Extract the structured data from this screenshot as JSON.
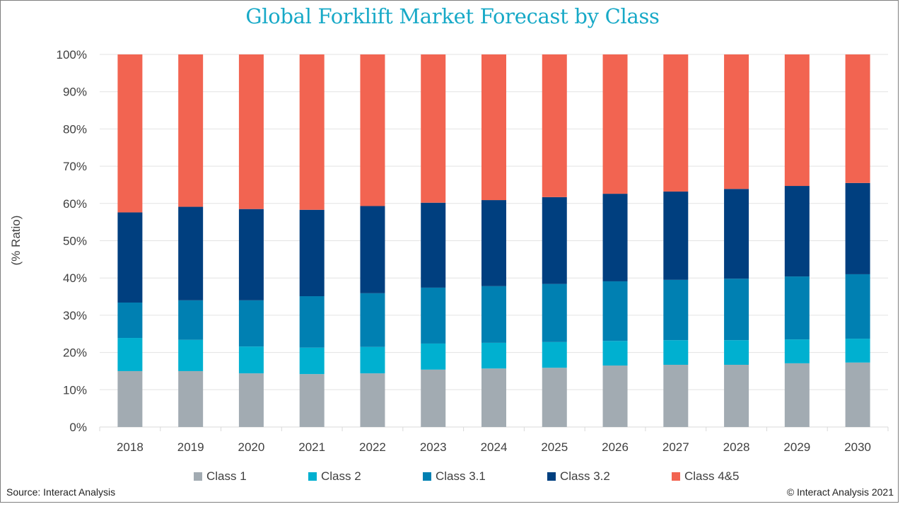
{
  "chart_data": {
    "type": "bar",
    "stacked": true,
    "title": "Global Forklift Market Forecast by Class",
    "xlabel": "",
    "ylabel": "(% Ratio)",
    "ylim": [
      0,
      100
    ],
    "yticks": [
      "0%",
      "10%",
      "20%",
      "30%",
      "40%",
      "50%",
      "60%",
      "70%",
      "80%",
      "90%",
      "100%"
    ],
    "grid": true,
    "legend_position": "bottom",
    "categories": [
      "2018",
      "2019",
      "2020",
      "2021",
      "2022",
      "2023",
      "2024",
      "2025",
      "2026",
      "2027",
      "2028",
      "2029",
      "2030"
    ],
    "series": [
      {
        "name": "Class 1",
        "color": "#a2abb2",
        "values": [
          15.0,
          15.0,
          14.4,
          14.2,
          14.4,
          15.4,
          15.7,
          15.9,
          16.5,
          16.7,
          16.7,
          17.1,
          17.3
        ]
      },
      {
        "name": "Class 2",
        "color": "#00b0d0",
        "values": [
          8.9,
          8.4,
          7.2,
          7.1,
          7.1,
          7.0,
          6.9,
          6.9,
          6.6,
          6.6,
          6.6,
          6.4,
          6.4
        ]
      },
      {
        "name": "Class 3.1",
        "color": "#0080b2",
        "values": [
          9.5,
          10.6,
          12.4,
          13.8,
          14.4,
          15.0,
          15.2,
          15.6,
          16.0,
          16.2,
          16.5,
          16.9,
          17.3
        ]
      },
      {
        "name": "Class 3.2",
        "color": "#003f7f",
        "values": [
          24.2,
          25.1,
          24.5,
          23.2,
          23.4,
          22.8,
          23.1,
          23.3,
          23.5,
          23.7,
          24.1,
          24.3,
          24.5
        ]
      },
      {
        "name": "Class 4&5",
        "color": "#f26451",
        "values": [
          42.4,
          40.9,
          41.5,
          41.7,
          40.7,
          39.8,
          39.1,
          38.3,
          37.4,
          36.8,
          36.1,
          35.3,
          34.5
        ]
      }
    ]
  },
  "footer": {
    "source": "Source: Interact Analysis",
    "copyright": "© Interact Analysis 2021"
  }
}
